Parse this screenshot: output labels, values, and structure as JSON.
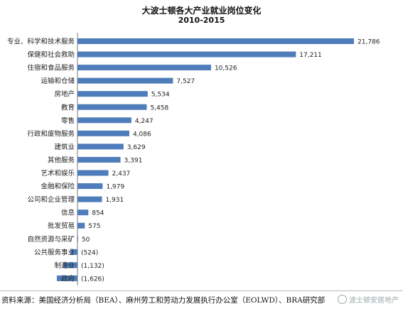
{
  "chart_data": {
    "type": "bar",
    "orientation": "horizontal",
    "title": "大波士顿各大产业就业岗位变化",
    "subtitle": "2010-2015",
    "categories": [
      "专业、科学和技术服务",
      "保健和社会救助",
      "住宿和食品服务",
      "运输和仓储",
      "房地产",
      "教育",
      "零售",
      "行政和废物服务",
      "建筑业",
      "其他服务",
      "艺术和娱乐",
      "金融和保险",
      "公司和企业管理",
      "信息",
      "批发贸易",
      "自然资源与采矿",
      "公共服务事业",
      "制造业",
      "政府"
    ],
    "values": [
      21786,
      17211,
      10526,
      7527,
      5534,
      5458,
      4247,
      4086,
      3629,
      3391,
      2437,
      1979,
      1931,
      854,
      575,
      50,
      -524,
      -1132,
      -1626
    ],
    "value_labels": [
      "21,786",
      "17,211",
      "10,526",
      "7,527",
      "5,534",
      "5,458",
      "4,247",
      "4,086",
      "3,629",
      "3,391",
      "2,437",
      "1,979",
      "1,931",
      "854",
      "575",
      "50",
      "(524)",
      "(1,132)",
      "(1,626)"
    ],
    "xlim": [
      -1626,
      21786
    ],
    "grid": false,
    "legend": "none",
    "bar_color": "#4f7dbb"
  },
  "source": "资料来源：美国经济分析局（BEA）、麻州劳工和劳动力发展执行办公室（EOLWD）、BRA研究部",
  "watermark": "波士顿安居地产"
}
